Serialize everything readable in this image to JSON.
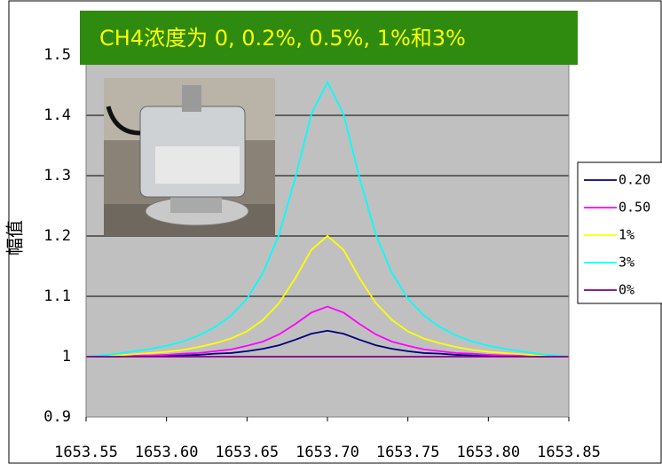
{
  "chart_data": {
    "type": "line",
    "title": "CH4浓度为 0, 0.2%, 0.5%, 1%和3%",
    "y_label": "幅值",
    "x": [
      1653.55,
      1653.56,
      1653.57,
      1653.58,
      1653.59,
      1653.6,
      1653.61,
      1653.62,
      1653.63,
      1653.64,
      1653.65,
      1653.66,
      1653.67,
      1653.68,
      1653.69,
      1653.7,
      1653.71,
      1653.72,
      1653.73,
      1653.74,
      1653.75,
      1653.76,
      1653.77,
      1653.78,
      1653.79,
      1653.8,
      1653.81,
      1653.82,
      1653.83,
      1653.84,
      1653.85
    ],
    "series": [
      {
        "name": "0.20",
        "color": "#000080",
        "values": [
          1.0,
          1.0,
          1.0,
          1.001,
          1.001,
          1.002,
          1.002,
          1.003,
          1.005,
          1.006,
          1.009,
          1.013,
          1.019,
          1.028,
          1.038,
          1.043,
          1.038,
          1.028,
          1.019,
          1.013,
          1.009,
          1.006,
          1.005,
          1.003,
          1.002,
          1.002,
          1.001,
          1.001,
          1.0,
          1.0,
          1.0
        ]
      },
      {
        "name": "0.50",
        "color": "#ff00ff",
        "values": [
          1.0,
          1.0,
          1.001,
          1.002,
          1.002,
          1.003,
          1.005,
          1.006,
          1.009,
          1.012,
          1.018,
          1.025,
          1.037,
          1.054,
          1.073,
          1.083,
          1.073,
          1.054,
          1.037,
          1.025,
          1.018,
          1.012,
          1.009,
          1.006,
          1.005,
          1.003,
          1.002,
          1.002,
          1.001,
          1.0,
          1.0
        ]
      },
      {
        "name": "1%",
        "color": "#ffff00",
        "values": [
          1.0,
          1.001,
          1.002,
          1.004,
          1.006,
          1.008,
          1.011,
          1.016,
          1.022,
          1.03,
          1.042,
          1.061,
          1.089,
          1.13,
          1.177,
          1.2,
          1.177,
          1.13,
          1.089,
          1.061,
          1.042,
          1.03,
          1.022,
          1.016,
          1.011,
          1.008,
          1.006,
          1.004,
          1.002,
          1.001,
          1.0
        ]
      },
      {
        "name": "3%",
        "color": "#00ffff",
        "values": [
          1.0,
          1.002,
          1.005,
          1.009,
          1.013,
          1.018,
          1.025,
          1.035,
          1.049,
          1.068,
          1.096,
          1.139,
          1.203,
          1.296,
          1.402,
          1.455,
          1.402,
          1.296,
          1.203,
          1.139,
          1.096,
          1.068,
          1.049,
          1.035,
          1.025,
          1.018,
          1.013,
          1.009,
          1.005,
          1.002,
          1.0
        ]
      },
      {
        "name": "0%",
        "color": "#800080",
        "values": [
          1,
          1,
          1,
          1,
          1,
          1,
          1,
          1,
          1,
          1,
          1,
          1,
          1,
          1,
          1,
          1,
          1,
          1,
          1,
          1,
          1,
          1,
          1,
          1,
          1,
          1,
          1,
          1,
          1,
          1,
          1
        ]
      }
    ],
    "xlim": [
      1653.55,
      1653.85
    ],
    "xticks": [
      1653.55,
      {
        "value": 1653.6,
        "label": "1653.60"
      },
      1653.65,
      {
        "value": 1653.7,
        "label": "1653.70"
      },
      1653.75,
      {
        "value": 1653.8,
        "label": "1653.80"
      },
      1653.85
    ],
    "ylim": [
      0.9,
      1.55
    ],
    "yticks": [
      0.9,
      1,
      1.1,
      1.2,
      1.3,
      1.4,
      1.5
    ],
    "grid": true,
    "legend": "right"
  }
}
